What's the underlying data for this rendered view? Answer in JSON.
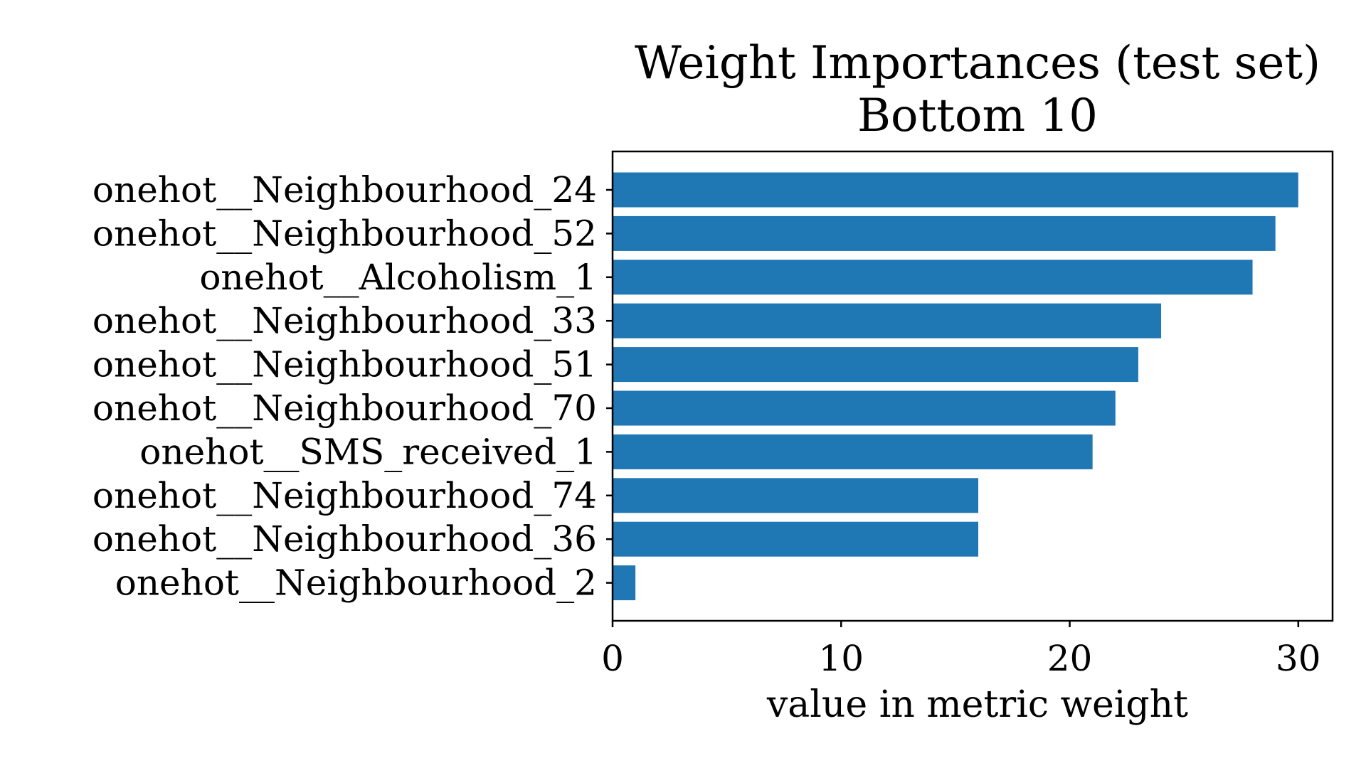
{
  "chart_data": {
    "type": "bar",
    "orientation": "horizontal",
    "title": [
      "Weight Importances (test set)",
      "Bottom 10"
    ],
    "xlabel": "value in metric weight",
    "ylabel": "",
    "categories": [
      "onehot__Neighbourhood_24",
      "onehot__Neighbourhood_52",
      "onehot__Alcoholism_1",
      "onehot__Neighbourhood_33",
      "onehot__Neighbourhood_51",
      "onehot__Neighbourhood_70",
      "onehot__SMS_received_1",
      "onehot__Neighbourhood_74",
      "onehot__Neighbourhood_36",
      "onehot__Neighbourhood_2"
    ],
    "values": [
      30,
      29,
      28,
      24,
      23,
      22,
      21,
      16,
      16,
      1
    ],
    "xlim": [
      0,
      31.5
    ],
    "xticks": [
      0,
      10,
      20,
      30
    ],
    "grid": false,
    "legend": "none",
    "bar_color": "#1f77b4"
  }
}
